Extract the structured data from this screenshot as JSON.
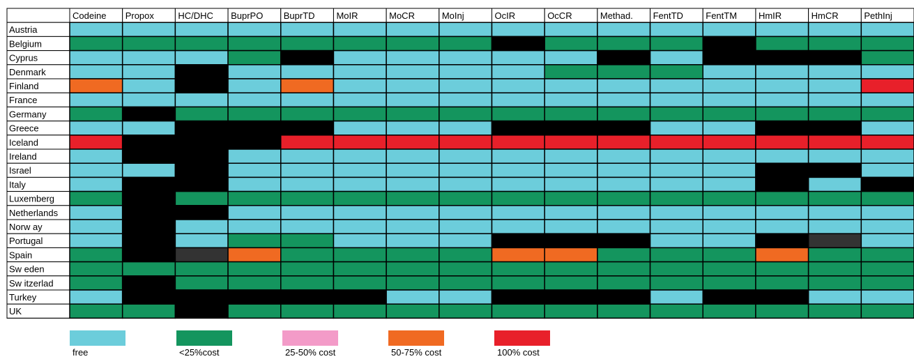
{
  "colors": {
    "free": "#6ccddb",
    "lt25": "#14955e",
    "c25_50": "#f39bc8",
    "c50_75": "#f06a22",
    "c100": "#e8202a",
    "unavailable": "#000000",
    "dark": "#333333"
  },
  "legend": [
    {
      "key": "free",
      "label": "free"
    },
    {
      "key": "lt25",
      "label": "<25%cost"
    },
    {
      "key": "c25_50",
      "label": "25-50% cost"
    },
    {
      "key": "c50_75",
      "label": "50-75% cost"
    },
    {
      "key": "c100",
      "label": "100% cost"
    }
  ],
  "chart_data": {
    "type": "heatmap",
    "columns": [
      "Codeine",
      "Propox",
      "HC/DHC",
      "BuprPO",
      "BuprTD",
      "MoIR",
      "MoCR",
      "MoInj",
      "OcIR",
      "OcCR",
      "Methad.",
      "FentTD",
      "FentTM",
      "HmIR",
      "HmCR",
      "PethInj"
    ],
    "rows": [
      "Austria",
      "Belgium",
      "Cyprus",
      "Denmark",
      "Finland",
      "France",
      "Germany",
      "Greece",
      "Iceland",
      "Ireland",
      "Israel",
      "Italy",
      "Luxemberg",
      "Netherlands",
      "Norw ay",
      "Portugal",
      "Spain",
      "Sw eden",
      "Sw itzerlad",
      "Turkey",
      "UK"
    ],
    "legend_placement": "bottom",
    "grid": true,
    "cells": [
      [
        "free",
        "free",
        "free",
        "free",
        "free",
        "free",
        "free",
        "free",
        "free",
        "free",
        "free",
        "free",
        "free",
        "free",
        "free",
        "free"
      ],
      [
        "lt25",
        "lt25",
        "lt25",
        "lt25",
        "lt25",
        "lt25",
        "lt25",
        "lt25",
        "unavailable",
        "lt25",
        "lt25",
        "lt25",
        "unavailable",
        "lt25",
        "lt25",
        "lt25"
      ],
      [
        "free",
        "free",
        "free",
        "lt25",
        "unavailable",
        "free",
        "free",
        "free",
        "free",
        "free",
        "unavailable",
        "free",
        "unavailable",
        "unavailable",
        "unavailable",
        "lt25"
      ],
      [
        "free",
        "free",
        "unavailable",
        "free",
        "free",
        "free",
        "free",
        "free",
        "free",
        "lt25",
        "lt25",
        "lt25",
        "free",
        "free",
        "free",
        "free"
      ],
      [
        "c50_75",
        "free",
        "unavailable",
        "free",
        "c50_75",
        "free",
        "free",
        "free",
        "free",
        "free",
        "free",
        "free",
        "free",
        "free",
        "free",
        "c100"
      ],
      [
        "free",
        "free",
        "free",
        "free",
        "free",
        "free",
        "free",
        "free",
        "free",
        "free",
        "free",
        "free",
        "free",
        "free",
        "free",
        "free"
      ],
      [
        "lt25",
        "unavailable",
        "lt25",
        "lt25",
        "lt25",
        "lt25",
        "lt25",
        "lt25",
        "lt25",
        "lt25",
        "lt25",
        "lt25",
        "lt25",
        "lt25",
        "lt25",
        "lt25"
      ],
      [
        "free",
        "free",
        "unavailable",
        "unavailable",
        "unavailable",
        "free",
        "free",
        "free",
        "unavailable",
        "unavailable",
        "unavailable",
        "free",
        "free",
        "unavailable",
        "unavailable",
        "free"
      ],
      [
        "c100",
        "unavailable",
        "unavailable",
        "unavailable",
        "c100",
        "c100",
        "c100",
        "c100",
        "c100",
        "c100",
        "c100",
        "c100",
        "c100",
        "c100",
        "c100",
        "c100"
      ],
      [
        "free",
        "unavailable",
        "unavailable",
        "free",
        "free",
        "free",
        "free",
        "free",
        "free",
        "free",
        "free",
        "free",
        "free",
        "free",
        "free",
        "free"
      ],
      [
        "free",
        "free",
        "unavailable",
        "free",
        "free",
        "free",
        "free",
        "free",
        "free",
        "free",
        "free",
        "free",
        "free",
        "unavailable",
        "unavailable",
        "free"
      ],
      [
        "free",
        "unavailable",
        "unavailable",
        "free",
        "free",
        "free",
        "free",
        "free",
        "free",
        "free",
        "free",
        "free",
        "free",
        "unavailable",
        "free",
        "unavailable"
      ],
      [
        "lt25",
        "unavailable",
        "lt25",
        "lt25",
        "lt25",
        "lt25",
        "lt25",
        "lt25",
        "lt25",
        "lt25",
        "lt25",
        "lt25",
        "lt25",
        "lt25",
        "lt25",
        "lt25"
      ],
      [
        "free",
        "unavailable",
        "unavailable",
        "free",
        "free",
        "free",
        "free",
        "free",
        "free",
        "free",
        "free",
        "free",
        "free",
        "free",
        "free",
        "free"
      ],
      [
        "free",
        "unavailable",
        "free",
        "free",
        "free",
        "free",
        "free",
        "free",
        "free",
        "free",
        "free",
        "free",
        "free",
        "free",
        "free",
        "free"
      ],
      [
        "free",
        "unavailable",
        "free",
        "lt25",
        "lt25",
        "free",
        "free",
        "free",
        "unavailable",
        "unavailable",
        "unavailable",
        "free",
        "free",
        "unavailable",
        "dark",
        "free"
      ],
      [
        "lt25",
        "unavailable",
        "dark",
        "c50_75",
        "lt25",
        "lt25",
        "lt25",
        "lt25",
        "c50_75",
        "c50_75",
        "lt25",
        "lt25",
        "lt25",
        "c50_75",
        "lt25",
        "lt25"
      ],
      [
        "lt25",
        "lt25",
        "lt25",
        "lt25",
        "lt25",
        "lt25",
        "lt25",
        "lt25",
        "lt25",
        "lt25",
        "lt25",
        "lt25",
        "lt25",
        "lt25",
        "lt25",
        "lt25"
      ],
      [
        "lt25",
        "unavailable",
        "lt25",
        "lt25",
        "lt25",
        "lt25",
        "lt25",
        "lt25",
        "lt25",
        "lt25",
        "lt25",
        "lt25",
        "lt25",
        "lt25",
        "lt25",
        "lt25"
      ],
      [
        "free",
        "unavailable",
        "unavailable",
        "unavailable",
        "unavailable",
        "unavailable",
        "free",
        "free",
        "unavailable",
        "unavailable",
        "unavailable",
        "free",
        "unavailable",
        "unavailable",
        "free",
        "free"
      ],
      [
        "lt25",
        "lt25",
        "unavailable",
        "lt25",
        "lt25",
        "lt25",
        "lt25",
        "lt25",
        "lt25",
        "lt25",
        "lt25",
        "lt25",
        "lt25",
        "lt25",
        "lt25",
        "lt25"
      ]
    ]
  }
}
